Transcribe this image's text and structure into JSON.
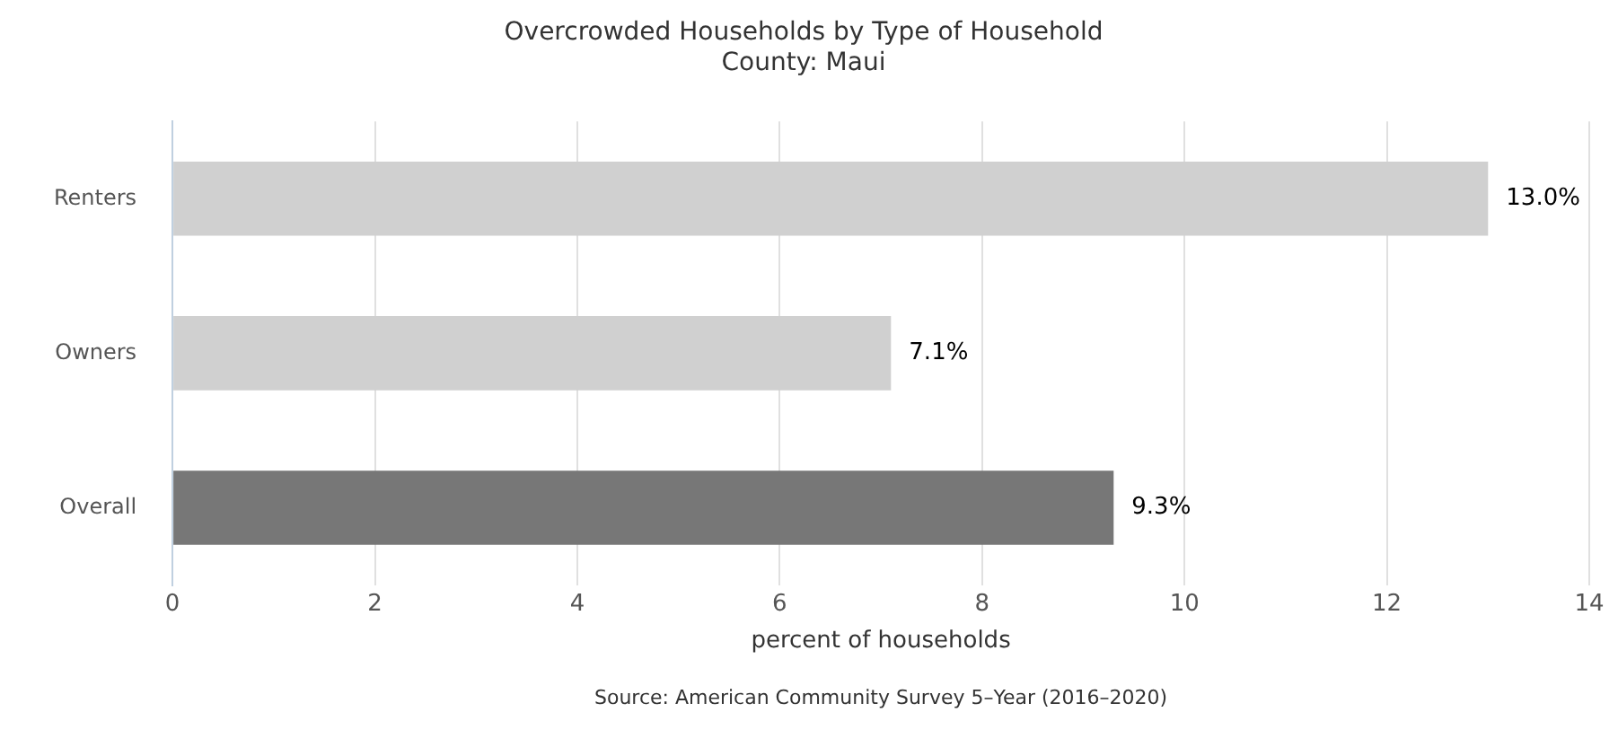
{
  "chart_data": {
    "type": "bar",
    "orientation": "horizontal",
    "title": "Overcrowded Households by Type of Household",
    "subtitle": "County: Maui",
    "xlabel": "percent of households",
    "categories": [
      "Renters",
      "Owners",
      "Overall"
    ],
    "values": [
      13.0,
      7.1,
      9.3
    ],
    "colors": [
      "#d0d0d0",
      "#d0d0d0",
      "#777777"
    ],
    "value_labels": [
      "13.0%",
      "7.1%",
      "9.3%"
    ],
    "xlim": [
      0,
      14
    ],
    "xticks": [
      0,
      2,
      4,
      6,
      8,
      10,
      12,
      14
    ],
    "grid": "x",
    "legend": false,
    "annotations": [
      "Source: American Community Survey 5–Year (2016–2020)"
    ]
  }
}
